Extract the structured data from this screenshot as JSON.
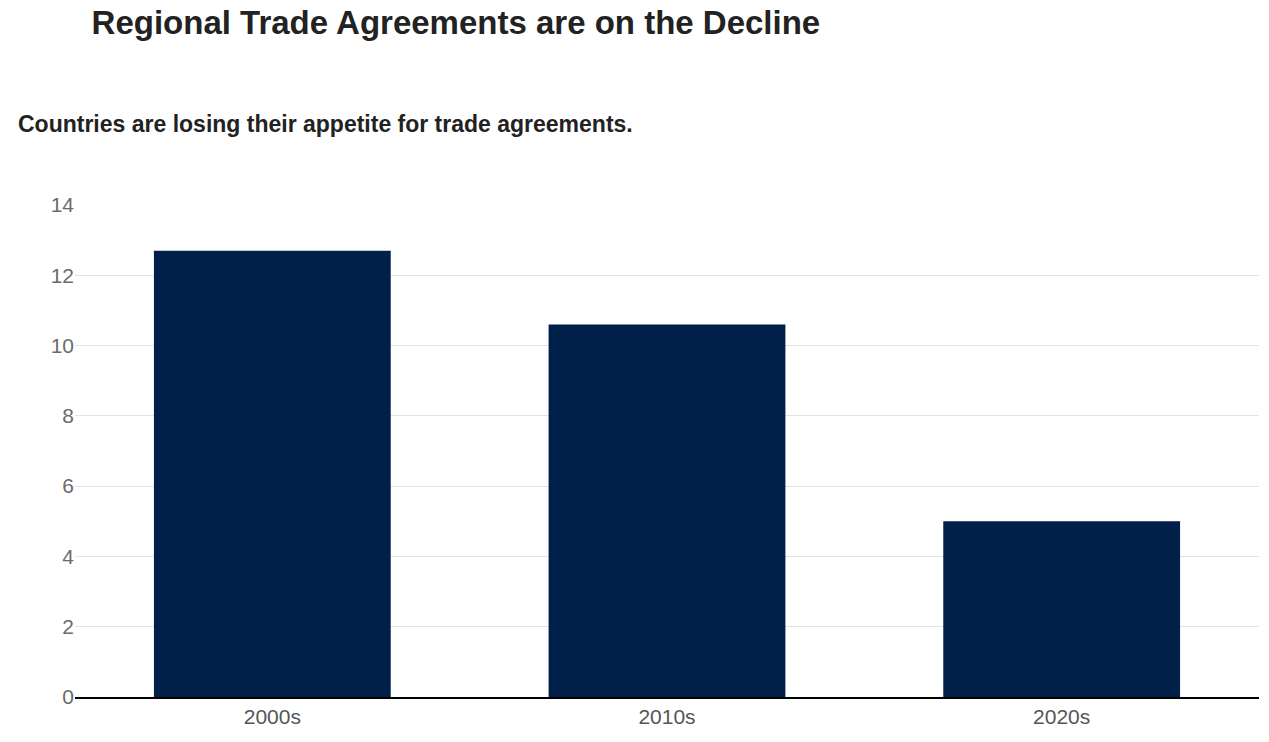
{
  "chart_data": {
    "type": "bar",
    "title": "Regional Trade Agreements are on the Decline",
    "subtitle": "Countries are losing their appetite for trade agreements.",
    "categories": [
      "2000s",
      "2010s",
      "2020s"
    ],
    "values": [
      12.7,
      10.6,
      5.0
    ],
    "color": "#00204a",
    "ylim": [
      0,
      14
    ],
    "yticks": [
      0,
      2,
      4,
      6,
      8,
      10,
      12,
      14
    ],
    "grid": true
  }
}
